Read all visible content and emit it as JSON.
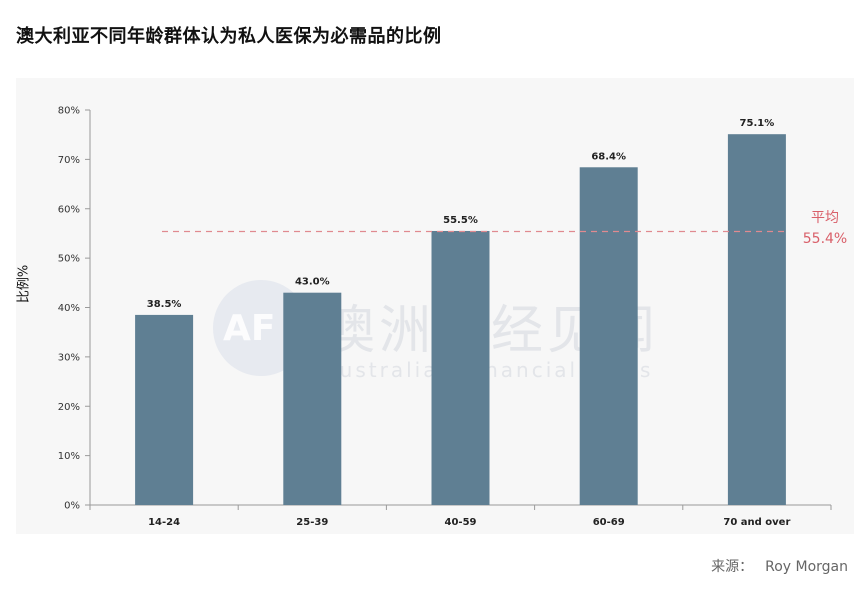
{
  "header": {
    "title": "澳大利亚不同年龄群体认为私人医保为必需品的比例"
  },
  "source": {
    "label": "来源：",
    "value": "Roy Morgan"
  },
  "watermark": {
    "logo": "AF",
    "cn": "澳洲财经见闻",
    "en": "Australian Financial News"
  },
  "average": {
    "label": "平均",
    "value": "55.4%",
    "number": 55.4
  },
  "colors": {
    "bar": "#5f7f93",
    "average_line": "#e08a90",
    "average_text": "#d9606a",
    "panel": "#f7f7f7"
  },
  "chart_data": {
    "type": "bar",
    "title": "澳大利亚不同年龄群体认为私人医保为必需品的比例",
    "xlabel": "",
    "ylabel": "比例%",
    "categories": [
      "14-24",
      "25-39",
      "40-59",
      "60-69",
      "70 and over"
    ],
    "values": [
      38.5,
      43.0,
      55.5,
      68.4,
      75.1
    ],
    "value_labels": [
      "38.5%",
      "43.0%",
      "55.5%",
      "68.4%",
      "75.1%"
    ],
    "ylim": [
      0,
      80
    ],
    "yticks": [
      0,
      10,
      20,
      30,
      40,
      50,
      60,
      70,
      80
    ],
    "ytick_labels": [
      "0%",
      "10%",
      "20%",
      "30%",
      "40%",
      "50%",
      "60%",
      "70%",
      "80%"
    ],
    "reference_line": {
      "label": "平均",
      "value": 55.4,
      "style": "dashed"
    },
    "grid": false,
    "legend": "none"
  }
}
